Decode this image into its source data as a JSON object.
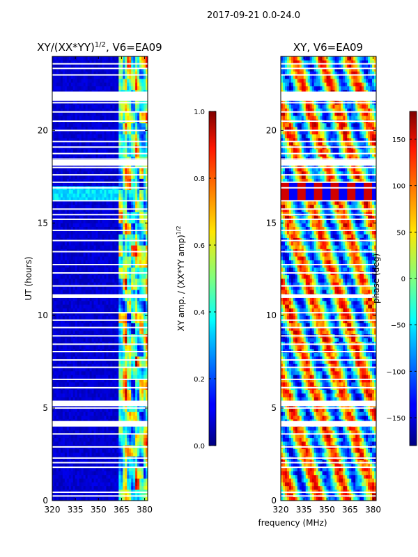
{
  "suptitle": "2017-09-21 0.0-24.0",
  "common_xlabel": "frequency (MHz)",
  "chart_data": [
    {
      "type": "heatmap",
      "title_main": "XY/(XX*YY)",
      "title_sup": "1/2",
      "title_rest": ", V6=EA09",
      "ylabel": "UT (hours)",
      "xlim": [
        320,
        382
      ],
      "ylim": [
        0,
        24
      ],
      "xticks": [
        320,
        335,
        350,
        365,
        380
      ],
      "yticks": [
        0,
        5,
        10,
        15,
        20
      ],
      "colorbar": {
        "label_main": "XY amp. / (XX*YY amp)",
        "label_sup": "1/2",
        "range": [
          0.0,
          1.0
        ],
        "ticks": [
          0.0,
          0.2,
          0.4,
          0.6,
          0.8,
          1.0
        ],
        "tick_labels": [
          "0.0",
          "0.2",
          "0.4",
          "0.6",
          "0.8",
          "1.0"
        ],
        "colormap": "jet"
      },
      "flagged_hours": [
        0.25,
        0.45,
        1.8,
        2.05,
        2.3,
        2.9,
        3.6,
        4.05,
        4.25,
        5.0,
        5.35,
        6.1,
        6.55,
        7.2,
        7.6,
        8.05,
        8.45,
        8.9,
        9.35,
        9.75,
        10.15,
        11.0,
        11.6,
        12.3,
        12.75,
        13.45,
        14.05,
        14.6,
        15.2,
        15.45,
        15.75,
        16.2,
        16.9,
        17.2,
        17.6,
        18.0,
        18.45,
        18.75,
        19.1,
        19.4,
        20.0,
        20.5,
        21.0,
        21.5,
        21.75,
        23.0,
        23.35,
        23.6
      ],
      "wide_flags": [
        [
          21.6,
          22.1
        ],
        [
          10.95,
          11.15
        ],
        [
          18.1,
          18.4
        ],
        [
          4.0,
          4.3
        ],
        [
          5.1,
          5.4
        ]
      ],
      "bright_band_MHz": [
        363,
        382
      ]
    },
    {
      "type": "heatmap",
      "title": "XY, V6=EA09",
      "xlim": [
        320,
        382
      ],
      "ylim": [
        0,
        24
      ],
      "xticks": [
        320,
        335,
        350,
        365,
        380
      ],
      "yticks": [
        0,
        5,
        10,
        15,
        20
      ],
      "colorbar": {
        "label": "phase (deg)",
        "range": [
          -180,
          180
        ],
        "ticks": [
          -150,
          -100,
          -50,
          0,
          50,
          100,
          150
        ],
        "tick_labels": [
          "−150",
          "−100",
          "−50",
          "0",
          "50",
          "100",
          "150"
        ],
        "colormap": "jet"
      },
      "flagged_hours": [
        0.25,
        0.45,
        1.8,
        2.05,
        2.3,
        2.9,
        3.6,
        4.05,
        4.25,
        5.0,
        5.35,
        6.1,
        6.55,
        7.2,
        7.6,
        8.05,
        8.45,
        8.9,
        9.35,
        9.75,
        10.15,
        11.0,
        11.6,
        12.3,
        12.75,
        13.45,
        14.05,
        14.6,
        15.2,
        15.45,
        15.75,
        16.2,
        16.9,
        17.2,
        17.6,
        18.0,
        18.45,
        18.75,
        19.1,
        19.4,
        20.0,
        20.5,
        21.0,
        21.5,
        21.75,
        23.0,
        23.35,
        23.6
      ],
      "wide_flags": [
        [
          21.6,
          22.1
        ],
        [
          10.95,
          11.15
        ],
        [
          18.1,
          18.4
        ],
        [
          4.0,
          4.3
        ],
        [
          5.1,
          5.4
        ]
      ]
    }
  ]
}
